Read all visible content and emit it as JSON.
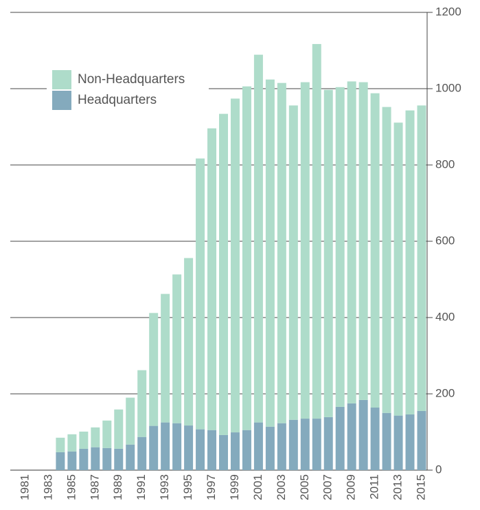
{
  "chart_data": {
    "type": "stacked_bar",
    "categories": [
      "1981",
      null,
      "1983",
      null,
      "1985",
      null,
      "1987",
      null,
      "1989",
      null,
      "1991",
      null,
      "1993",
      null,
      "1995",
      null,
      "1997",
      null,
      "1999",
      null,
      "2001",
      null,
      "2003",
      null,
      "2005",
      null,
      "2007",
      null,
      "2009",
      null,
      "2011",
      null,
      "2013",
      null,
      "2015"
    ],
    "series": [
      {
        "name": "Headquarters",
        "color": "#84aabd",
        "values": [
          0,
          0,
          0,
          47,
          49,
          56,
          60,
          58,
          56,
          67,
          87,
          116,
          125,
          123,
          117,
          107,
          105,
          92,
          99,
          105,
          125,
          114,
          123,
          132,
          135,
          135,
          139,
          166,
          175,
          184,
          164,
          150,
          143,
          146,
          155
        ]
      },
      {
        "name": "Non-Headquarters",
        "color": "#aedcca",
        "values": [
          0,
          0,
          0,
          38,
          45,
          45,
          52,
          72,
          103,
          123,
          175,
          296,
          337,
          390,
          439,
          710,
          791,
          842,
          875,
          901,
          964,
          910,
          892,
          824,
          882,
          982,
          858,
          838,
          844,
          833,
          824,
          802,
          768,
          797,
          801
        ]
      }
    ],
    "ylim": [
      0,
      1200
    ],
    "yticks": [
      0,
      200,
      400,
      600,
      800,
      1000,
      1200
    ],
    "grid": true
  }
}
